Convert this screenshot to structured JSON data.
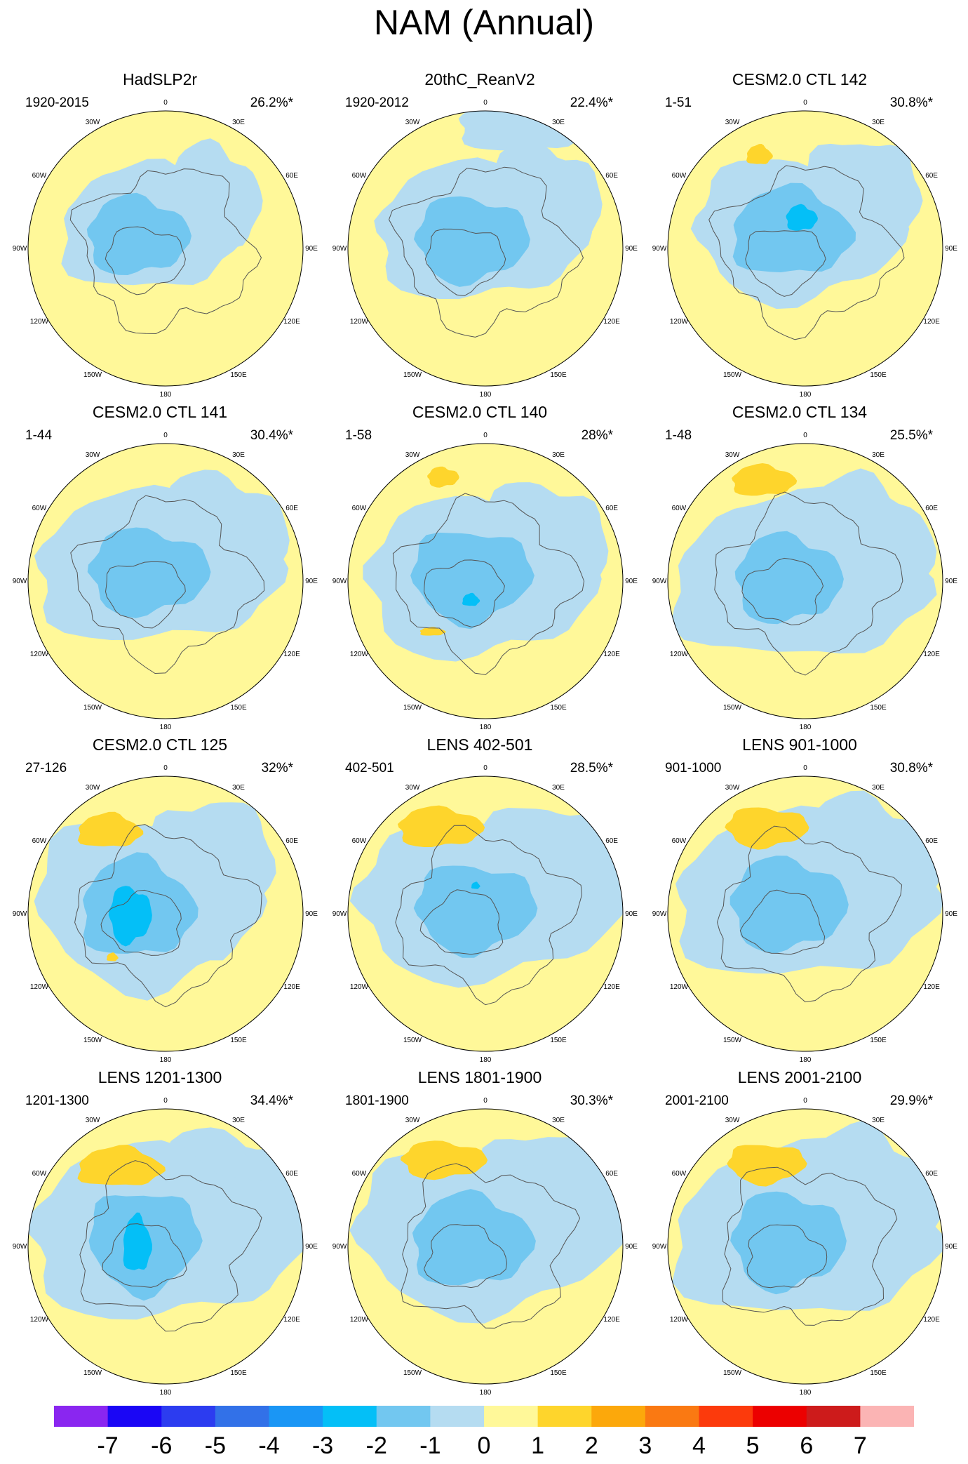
{
  "title": "NAM (Annual)",
  "lon_labels": [
    "180",
    "150E",
    "120E",
    "90E",
    "60E",
    "30E",
    "0",
    "30W",
    "60W",
    "90W",
    "120W",
    "150W"
  ],
  "panels": [
    {
      "title": "HadSLP2r",
      "period": "1920-2015",
      "pct": "26.2%*"
    },
    {
      "title": "20thC_ReanV2",
      "period": "1920-2012",
      "pct": "22.4%*"
    },
    {
      "title": "CESM2.0 CTL 142",
      "period": "1-51",
      "pct": "30.8%*"
    },
    {
      "title": "CESM2.0 CTL 141",
      "period": "1-44",
      "pct": "30.4%*"
    },
    {
      "title": "CESM2.0 CTL 140",
      "period": "1-58",
      "pct": "28%*"
    },
    {
      "title": "CESM2.0 CTL 134",
      "period": "1-48",
      "pct": "25.5%*"
    },
    {
      "title": "CESM2.0 CTL 125",
      "period": "27-126",
      "pct": "32%*"
    },
    {
      "title": "LENS 402-501",
      "period": "402-501",
      "pct": "28.5%*"
    },
    {
      "title": "LENS 901-1000",
      "period": "901-1000",
      "pct": "30.8%*"
    },
    {
      "title": "LENS 1201-1300",
      "period": "1201-1300",
      "pct": "34.4%*"
    },
    {
      "title": "LENS 1801-1900",
      "period": "1801-1900",
      "pct": "30.3%*"
    },
    {
      "title": "LENS 2001-2100",
      "period": "2001-2100",
      "pct": "29.9%*"
    }
  ],
  "colorbar": {
    "labels": [
      "-7",
      "-6",
      "-5",
      "-4",
      "-3",
      "-2",
      "-1",
      "0",
      "1",
      "2",
      "3",
      "4",
      "5",
      "6",
      "7"
    ],
    "colors": [
      "#8a26f0",
      "#1a06f5",
      "#2c3cf0",
      "#3271e8",
      "#1a96f5",
      "#04bff7",
      "#72c7f0",
      "#b5dcf1",
      "#fff899",
      "#fed52c",
      "#fca80b",
      "#fa7912",
      "#fc3a0c",
      "#ec0000",
      "#cd1b1b",
      "#fbb4b4"
    ]
  }
}
